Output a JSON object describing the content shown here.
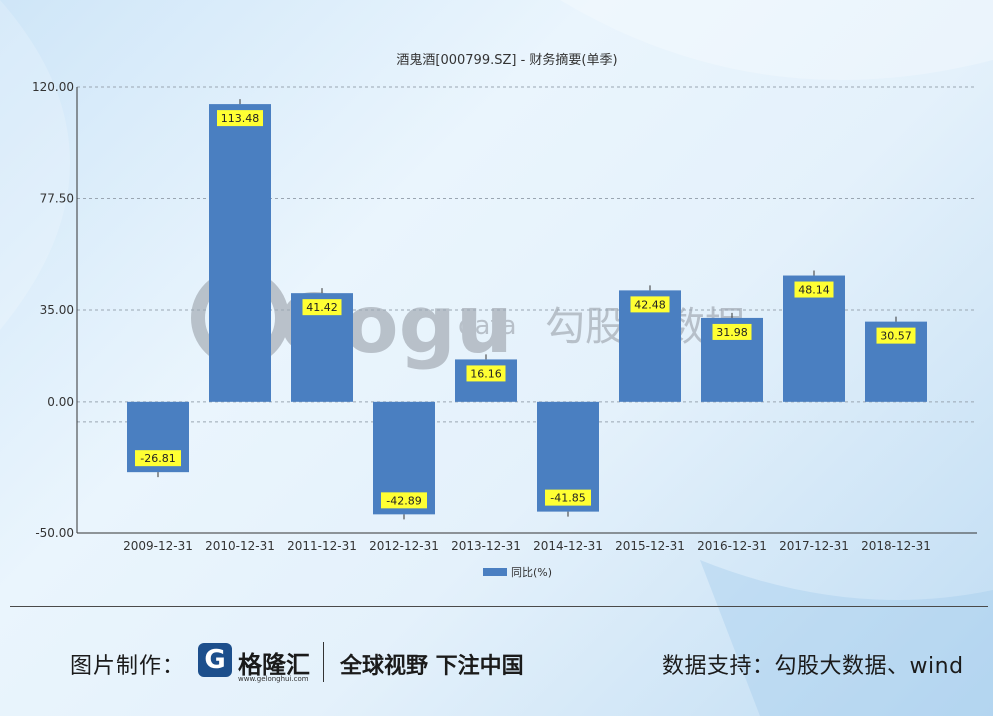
{
  "chart_data": {
    "type": "bar",
    "title": "酒鬼酒[000799.SZ] - 财务摘要(单季)",
    "categories": [
      "2009-12-31",
      "2010-12-31",
      "2011-12-31",
      "2012-12-31",
      "2013-12-31",
      "2014-12-31",
      "2015-12-31",
      "2016-12-31",
      "2017-12-31",
      "2018-12-31"
    ],
    "series": [
      {
        "name": "同比(%)",
        "values": [
          -26.81,
          113.48,
          41.42,
          -42.89,
          16.16,
          -41.85,
          42.48,
          31.98,
          48.14,
          30.57
        ],
        "color": "#4a7fc1"
      }
    ],
    "value_labels": [
      "-26.81",
      "113.48",
      "41.42",
      "-42.89",
      "16.16",
      "-41.85",
      "42.48",
      "31.98",
      "48.14",
      "30.57"
    ],
    "yticks": [
      "120.00",
      "77.50",
      "35.00",
      "0.00",
      "-50.00"
    ],
    "ytick_values": [
      120,
      77.5,
      35,
      0,
      -50
    ],
    "ylim": [
      -50,
      120
    ],
    "grid": true,
    "legend": "bottom-center",
    "label_bg": "#ffff33"
  },
  "watermark": {
    "brand": "Gogu",
    "sub": "data",
    "cn": "勾股大数据"
  },
  "footer": {
    "credit_label": "图片制作：",
    "logo_glyph": "G",
    "logo_name": "格隆汇",
    "logo_url": "www.gelonghui.com",
    "slogan": "全球视野 下注中国",
    "source_label": "数据支持：",
    "source_value": "勾股大数据、wind"
  }
}
